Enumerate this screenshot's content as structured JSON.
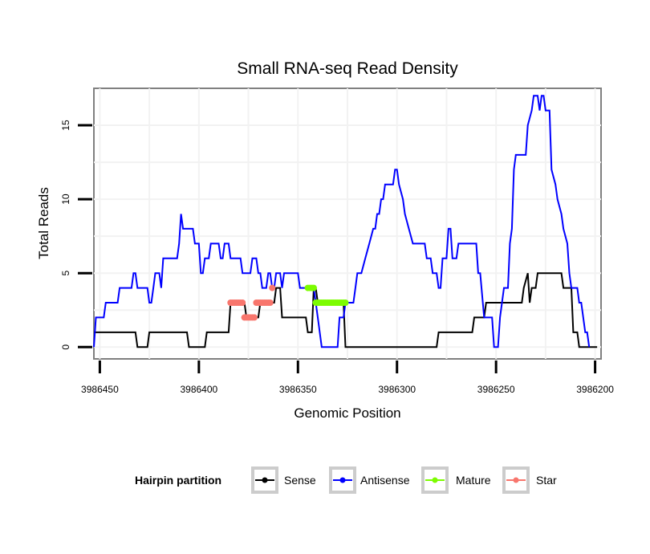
{
  "chart_data": {
    "type": "line",
    "title": "Small RNA-seq Read Density",
    "xlabel": "Genomic Position",
    "ylabel": "Total Reads",
    "xlim": [
      3986453,
      3986197
    ],
    "ylim": [
      -0.8,
      17.5
    ],
    "x_ticks": [
      3986450,
      3986400,
      3986350,
      3986300,
      3986250,
      3986200
    ],
    "x_tick_labels": [
      "3986450",
      "3986400",
      "3986350",
      "3986300",
      "3986250",
      "3986200"
    ],
    "y_ticks": [
      0,
      5,
      10,
      15
    ],
    "y_tick_labels": [
      "0",
      "5",
      "10",
      "15"
    ],
    "grid": true,
    "legend": {
      "title": "Hairpin partition",
      "position": "bottom",
      "entries": [
        "Sense",
        "Antisense",
        "Mature",
        "Star"
      ]
    },
    "series": [
      {
        "name": "Sense",
        "color": "#000000",
        "points": [
          [
            3986453,
            1
          ],
          [
            3986432,
            1
          ],
          [
            3986431,
            0
          ],
          [
            3986426,
            0
          ],
          [
            3986425,
            1
          ],
          [
            3986406,
            1
          ],
          [
            3986405,
            0
          ],
          [
            3986397,
            0
          ],
          [
            3986396,
            1
          ],
          [
            3986385,
            1
          ],
          [
            3986384,
            3
          ],
          [
            3986377,
            3
          ],
          [
            3986376,
            2
          ],
          [
            3986370,
            2
          ],
          [
            3986369,
            3
          ],
          [
            3986362,
            3
          ],
          [
            3986361,
            4
          ],
          [
            3986359,
            4
          ],
          [
            3986358,
            2
          ],
          [
            3986346,
            2
          ],
          [
            3986345,
            1
          ],
          [
            3986343,
            1
          ],
          [
            3986342,
            4
          ],
          [
            3986341,
            4
          ],
          [
            3986340,
            3
          ],
          [
            3986327,
            3
          ],
          [
            3986326,
            0
          ],
          [
            3986280,
            0
          ],
          [
            3986279,
            1
          ],
          [
            3986262,
            1
          ],
          [
            3986261,
            2
          ],
          [
            3986256,
            2
          ],
          [
            3986255,
            3
          ],
          [
            3986237,
            3
          ],
          [
            3986236,
            4
          ],
          [
            3986234,
            5
          ],
          [
            3986233,
            3
          ],
          [
            3986232,
            4
          ],
          [
            3986230,
            4
          ],
          [
            3986229,
            5
          ],
          [
            3986217,
            5
          ],
          [
            3986216,
            4
          ],
          [
            3986212,
            4
          ],
          [
            3986211,
            1
          ],
          [
            3986209,
            1
          ],
          [
            3986208,
            0
          ],
          [
            3986199,
            0
          ]
        ]
      },
      {
        "name": "Antisense",
        "color": "#0000ff",
        "points": [
          [
            3986453,
            0
          ],
          [
            3986452,
            2
          ],
          [
            3986448,
            2
          ],
          [
            3986447,
            3
          ],
          [
            3986441,
            3
          ],
          [
            3986440,
            4
          ],
          [
            3986434,
            4
          ],
          [
            3986433,
            5
          ],
          [
            3986432,
            5
          ],
          [
            3986431,
            4
          ],
          [
            3986426,
            4
          ],
          [
            3986425,
            3
          ],
          [
            3986424,
            3
          ],
          [
            3986423,
            4
          ],
          [
            3986422,
            5
          ],
          [
            3986420,
            5
          ],
          [
            3986419,
            4
          ],
          [
            3986418,
            6
          ],
          [
            3986411,
            6
          ],
          [
            3986410,
            7
          ],
          [
            3986409,
            9
          ],
          [
            3986408,
            8
          ],
          [
            3986403,
            8
          ],
          [
            3986402,
            7
          ],
          [
            3986400,
            7
          ],
          [
            3986399,
            5
          ],
          [
            3986398,
            5
          ],
          [
            3986397,
            6
          ],
          [
            3986395,
            6
          ],
          [
            3986394,
            7
          ],
          [
            3986390,
            7
          ],
          [
            3986389,
            6
          ],
          [
            3986388,
            6
          ],
          [
            3986387,
            7
          ],
          [
            3986385,
            7
          ],
          [
            3986384,
            6
          ],
          [
            3986379,
            6
          ],
          [
            3986378,
            5
          ],
          [
            3986374,
            5
          ],
          [
            3986373,
            6
          ],
          [
            3986371,
            6
          ],
          [
            3986370,
            5
          ],
          [
            3986369,
            5
          ],
          [
            3986368,
            4
          ],
          [
            3986366,
            4
          ],
          [
            3986365,
            5
          ],
          [
            3986364,
            5
          ],
          [
            3986363,
            4
          ],
          [
            3986362,
            4
          ],
          [
            3986361,
            5
          ],
          [
            3986359,
            5
          ],
          [
            3986358,
            4
          ],
          [
            3986357,
            5
          ],
          [
            3986350,
            5
          ],
          [
            3986349,
            4
          ],
          [
            3986344,
            4
          ],
          [
            3986342,
            4
          ],
          [
            3986341,
            3
          ],
          [
            3986340,
            2
          ],
          [
            3986338,
            0
          ],
          [
            3986330,
            0
          ],
          [
            3986329,
            2
          ],
          [
            3986327,
            2
          ],
          [
            3986326,
            3
          ],
          [
            3986322,
            3
          ],
          [
            3986321,
            4
          ],
          [
            3986320,
            5
          ],
          [
            3986318,
            5
          ],
          [
            3986316,
            6
          ],
          [
            3986314,
            7
          ],
          [
            3986312,
            8
          ],
          [
            3986311,
            8
          ],
          [
            3986310,
            9
          ],
          [
            3986309,
            9
          ],
          [
            3986308,
            10
          ],
          [
            3986307,
            10
          ],
          [
            3986306,
            11
          ],
          [
            3986302,
            11
          ],
          [
            3986301,
            12
          ],
          [
            3986300,
            12
          ],
          [
            3986299,
            11
          ],
          [
            3986297,
            10
          ],
          [
            3986296,
            9
          ],
          [
            3986294,
            8
          ],
          [
            3986292,
            7
          ],
          [
            3986286,
            7
          ],
          [
            3986285,
            6
          ],
          [
            3986283,
            6
          ],
          [
            3986282,
            5
          ],
          [
            3986280,
            5
          ],
          [
            3986279,
            4
          ],
          [
            3986278,
            4
          ],
          [
            3986277,
            6
          ],
          [
            3986275,
            6
          ],
          [
            3986274,
            8
          ],
          [
            3986273,
            8
          ],
          [
            3986272,
            6
          ],
          [
            3986270,
            6
          ],
          [
            3986269,
            7
          ],
          [
            3986260,
            7
          ],
          [
            3986259,
            5
          ],
          [
            3986258,
            5
          ],
          [
            3986256,
            2
          ],
          [
            3986252,
            2
          ],
          [
            3986251,
            0
          ],
          [
            3986249,
            0
          ],
          [
            3986248,
            2
          ],
          [
            3986246,
            4
          ],
          [
            3986244,
            4
          ],
          [
            3986243,
            7
          ],
          [
            3986242,
            8
          ],
          [
            3986241,
            12
          ],
          [
            3986240,
            13
          ],
          [
            3986235,
            13
          ],
          [
            3986234,
            15
          ],
          [
            3986232,
            16
          ],
          [
            3986231,
            17
          ],
          [
            3986229,
            17
          ],
          [
            3986228,
            16
          ],
          [
            3986227,
            17
          ],
          [
            3986226,
            17
          ],
          [
            3986225,
            16
          ],
          [
            3986223,
            16
          ],
          [
            3986222,
            12
          ],
          [
            3986220,
            11
          ],
          [
            3986219,
            10
          ],
          [
            3986217,
            9
          ],
          [
            3986216,
            8
          ],
          [
            3986214,
            7
          ],
          [
            3986213,
            5
          ],
          [
            3986212,
            4
          ],
          [
            3986209,
            4
          ],
          [
            3986208,
            3
          ],
          [
            3986207,
            3
          ],
          [
            3986206,
            2
          ],
          [
            3986205,
            1
          ],
          [
            3986204,
            1
          ],
          [
            3986203,
            0
          ]
        ]
      },
      {
        "name": "Mature",
        "color": "#7cfc00",
        "points": [
          [
            3986345,
            4
          ],
          [
            3986344,
            4
          ],
          [
            3986343,
            4
          ],
          [
            3986342,
            4
          ],
          [
            3986341,
            3
          ],
          [
            3986340,
            3
          ],
          [
            3986339,
            3
          ],
          [
            3986338,
            3
          ],
          [
            3986337,
            3
          ],
          [
            3986336,
            3
          ],
          [
            3986335,
            3
          ],
          [
            3986334,
            3
          ],
          [
            3986333,
            3
          ],
          [
            3986332,
            3
          ],
          [
            3986331,
            3
          ],
          [
            3986330,
            3
          ],
          [
            3986329,
            3
          ],
          [
            3986328,
            3
          ],
          [
            3986327,
            3
          ],
          [
            3986326,
            3
          ]
        ]
      },
      {
        "name": "Star",
        "color": "#f8766d",
        "points": [
          [
            3986384,
            3
          ],
          [
            3986383,
            3
          ],
          [
            3986382,
            3
          ],
          [
            3986381,
            3
          ],
          [
            3986380,
            3
          ],
          [
            3986379,
            3
          ],
          [
            3986378,
            3
          ],
          [
            3986377,
            2
          ],
          [
            3986376,
            2
          ],
          [
            3986375,
            2
          ],
          [
            3986374,
            2
          ],
          [
            3986373,
            2
          ],
          [
            3986372,
            2
          ],
          [
            3986371,
            3
          ],
          [
            3986370,
            3
          ],
          [
            3986369,
            3
          ],
          [
            3986368,
            3
          ],
          [
            3986367,
            3
          ],
          [
            3986366,
            3
          ],
          [
            3986365,
            3
          ],
          [
            3986364,
            3
          ],
          [
            3986363,
            4
          ]
        ]
      }
    ]
  }
}
